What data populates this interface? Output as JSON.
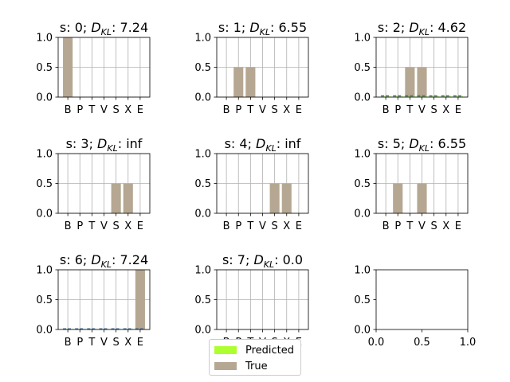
{
  "chart_data": {
    "type": "bar",
    "categories": [
      "B",
      "P",
      "T",
      "V",
      "S",
      "X",
      "E"
    ],
    "ylim": [
      0,
      1
    ],
    "yticks": [
      "0.0",
      "0.5",
      "1.0"
    ],
    "grid": true,
    "colors": {
      "predicted": "#adff2f",
      "true": "#b5a792",
      "predicted_line": "#4a6d94"
    },
    "legend": {
      "placement": "bottom-center",
      "entries": [
        "Predicted",
        "True"
      ]
    },
    "subplots": [
      {
        "title": "s: 0; D_KL: 7.24",
        "state": "0",
        "dkl": "7.24",
        "predicted": [
          0.0,
          0.0,
          0.0,
          0.0,
          0.0,
          0.0,
          0.0
        ],
        "true": [
          1.0,
          0.0,
          0.0,
          0.0,
          0.0,
          0.0,
          0.0
        ]
      },
      {
        "title": "s: 1; D_KL: 6.55",
        "state": "1",
        "dkl": "6.55",
        "predicted": [
          0.0,
          0.0,
          0.0,
          0.0,
          0.0,
          0.0,
          0.0
        ],
        "true": [
          0.0,
          0.5,
          0.5,
          0.0,
          0.0,
          0.0,
          0.0
        ]
      },
      {
        "title": "s: 2; D_KL: 4.62",
        "state": "2",
        "dkl": "4.62",
        "predicted": [
          0.02,
          0.02,
          0.02,
          0.02,
          0.02,
          0.02,
          0.02
        ],
        "true": [
          0.0,
          0.0,
          0.5,
          0.5,
          0.0,
          0.0,
          0.0
        ]
      },
      {
        "title": "s: 3; D_KL: inf",
        "state": "3",
        "dkl": "inf",
        "predicted": [
          0.0,
          0.0,
          0.0,
          0.0,
          0.0,
          0.0,
          0.0
        ],
        "true": [
          0.0,
          0.0,
          0.0,
          0.0,
          0.5,
          0.5,
          0.0
        ]
      },
      {
        "title": "s: 4; D_KL: inf",
        "state": "4",
        "dkl": "inf",
        "predicted": [
          0.0,
          0.0,
          0.0,
          0.0,
          0.0,
          0.0,
          0.0
        ],
        "true": [
          0.0,
          0.0,
          0.0,
          0.0,
          0.5,
          0.5,
          0.0
        ]
      },
      {
        "title": "s: 5; D_KL: 6.55",
        "state": "5",
        "dkl": "6.55",
        "predicted": [
          0.0,
          0.0,
          0.0,
          0.0,
          0.0,
          0.0,
          0.0
        ],
        "true": [
          0.0,
          0.5,
          0.0,
          0.5,
          0.0,
          0.0,
          0.0
        ]
      },
      {
        "title": "s: 6; D_KL: 7.24",
        "state": "6",
        "dkl": "7.24",
        "predicted": [
          0.01,
          0.01,
          0.01,
          0.01,
          0.01,
          0.01,
          0.01
        ],
        "true": [
          0.0,
          0.0,
          0.0,
          0.0,
          0.0,
          0.0,
          1.0
        ]
      },
      {
        "title": "s: 7; D_KL: 0.0",
        "state": "7",
        "dkl": "0.0",
        "predicted": [
          0.0,
          0.0,
          0.0,
          0.0,
          0.0,
          0.0,
          0.0
        ],
        "true": [
          0.0,
          0.0,
          0.0,
          0.0,
          0.0,
          0.0,
          0.0
        ]
      }
    ],
    "empty_subplot": {
      "xlim": [
        0,
        1
      ],
      "ylim": [
        0,
        1
      ],
      "xticks": [
        "0.0",
        "0.5",
        "1.0"
      ],
      "yticks": [
        "0.0",
        "0.5",
        "1.0"
      ]
    }
  }
}
